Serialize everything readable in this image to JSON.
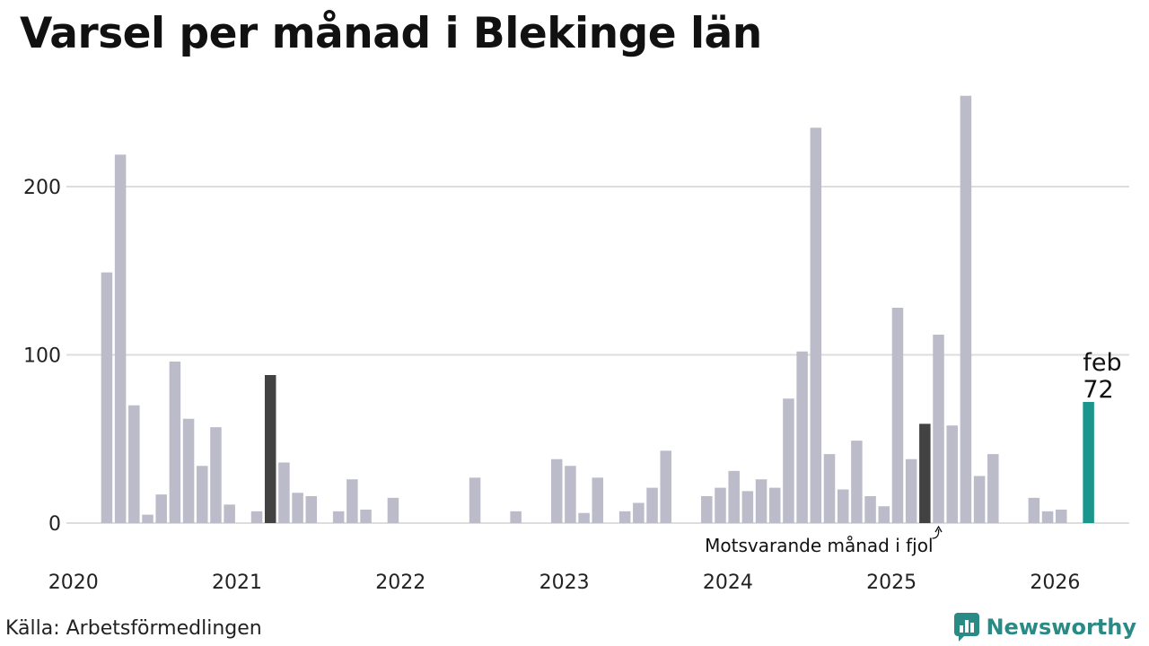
{
  "title": "Varsel per månad i Blekinge län",
  "source": "Källa: Arbetsförmedlingen",
  "brand": "Newsworthy",
  "colors": {
    "bar": "#bcbbc9",
    "same_month_last_year": "#424242",
    "current": "#1a968d",
    "grid": "#dddddd",
    "brand": "#2a8a85"
  },
  "chart_data": {
    "type": "bar",
    "title": "Varsel per månad i Blekinge län",
    "xlabel": "",
    "ylabel": "",
    "ylim": [
      0,
      255
    ],
    "yticks": [
      0,
      100,
      200
    ],
    "grid": true,
    "year_labels": [
      "2020",
      "2021",
      "2022",
      "2023",
      "2024",
      "2025",
      "2026"
    ],
    "months": [
      "2020-01",
      "2020-02",
      "2020-03",
      "2020-04",
      "2020-05",
      "2020-06",
      "2020-07",
      "2020-08",
      "2020-09",
      "2020-10",
      "2020-11",
      "2020-12",
      "2021-01",
      "2021-02",
      "2021-03",
      "2021-04",
      "2021-05",
      "2021-06",
      "2021-07",
      "2021-08",
      "2021-09",
      "2021-10",
      "2021-11",
      "2021-12",
      "2022-01",
      "2022-02",
      "2022-03",
      "2022-04",
      "2022-05",
      "2022-06",
      "2022-07",
      "2022-08",
      "2022-09",
      "2022-10",
      "2022-11",
      "2022-12",
      "2023-01",
      "2023-02",
      "2023-03",
      "2023-04",
      "2023-05",
      "2023-06",
      "2023-07",
      "2023-08",
      "2023-09",
      "2023-10",
      "2023-11",
      "2023-12",
      "2024-01",
      "2024-02",
      "2024-03",
      "2024-04",
      "2024-05",
      "2024-06",
      "2024-07",
      "2024-08",
      "2024-09",
      "2024-10",
      "2024-11",
      "2024-12",
      "2025-01",
      "2025-02",
      "2025-03",
      "2025-04",
      "2025-05",
      "2025-06",
      "2025-07",
      "2025-08",
      "2025-09",
      "2025-10",
      "2025-11",
      "2025-12",
      "2026-01",
      "2026-02"
    ],
    "values": [
      0,
      149,
      219,
      70,
      5,
      17,
      96,
      62,
      34,
      57,
      11,
      0,
      7,
      88,
      36,
      18,
      16,
      0,
      7,
      26,
      8,
      0,
      15,
      0,
      0,
      0,
      0,
      0,
      27,
      0,
      0,
      7,
      0,
      0,
      38,
      34,
      6,
      27,
      0,
      7,
      12,
      21,
      43,
      0,
      0,
      16,
      21,
      31,
      19,
      26,
      21,
      74,
      102,
      235,
      41,
      20,
      49,
      16,
      10,
      128,
      38,
      59,
      112,
      58,
      254,
      28,
      41,
      0,
      0,
      15,
      7,
      8,
      0,
      72
    ],
    "highlights": {
      "same_month_last_year_index": [
        13,
        61
      ],
      "last_year_index": 62,
      "current_index": 73
    },
    "annotations": {
      "current_month_label": "feb",
      "current_value_label": "72",
      "same_month_last_year_label": "Motsvarande månad i fjol"
    }
  }
}
